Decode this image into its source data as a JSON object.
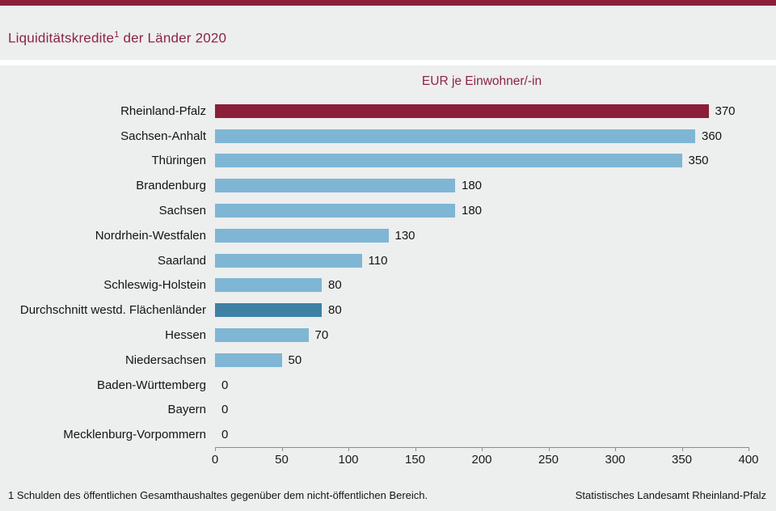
{
  "header": {
    "title_main": "Liquiditätskredite",
    "title_sup": "1",
    "title_rest": " der Länder 2020"
  },
  "chart_data": {
    "type": "bar",
    "orientation": "horizontal",
    "title": "EUR je Einwohner/-in",
    "xlabel": "",
    "ylabel": "",
    "xlim": [
      0,
      400
    ],
    "x_ticks": [
      0,
      50,
      100,
      150,
      200,
      250,
      300,
      350,
      400
    ],
    "grid": false,
    "legend": "none",
    "categories": [
      "Rheinland-Pfalz",
      "Sachsen-Anhalt",
      "Thüringen",
      "Brandenburg",
      "Sachsen",
      "Nordrhein-Westfalen",
      "Saarland",
      "Schleswig-Holstein",
      "Durchschnitt westd. Flächenländer",
      "Hessen",
      "Niedersachsen",
      "Baden-Württemberg",
      "Bayern",
      "Mecklenburg-Vorpommern"
    ],
    "values": [
      370,
      360,
      350,
      180,
      180,
      130,
      110,
      80,
      80,
      70,
      50,
      0,
      0,
      0
    ],
    "bar_styles": [
      "highlight",
      "normal",
      "normal",
      "normal",
      "normal",
      "normal",
      "normal",
      "normal",
      "average",
      "normal",
      "normal",
      "normal",
      "normal",
      "normal"
    ],
    "colors": {
      "highlight": "#8B1E38",
      "normal": "#7FB6D4",
      "average": "#3E81A4"
    }
  },
  "footer": {
    "footnote": "1 Schulden des öffentlichen Gesamthaushaltes gegenüber dem nicht-öffentlichen Bereich.",
    "source": "Statistisches Landesamt Rheinland-Pfalz"
  }
}
